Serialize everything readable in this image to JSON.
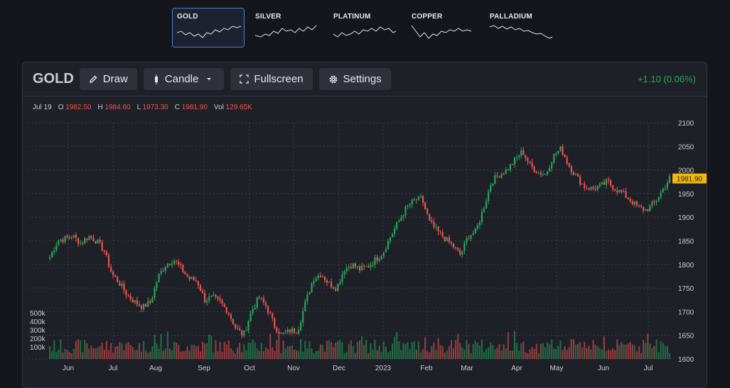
{
  "tabs": [
    {
      "name": "GOLD",
      "active": true
    },
    {
      "name": "SILVER",
      "active": false
    },
    {
      "name": "PLATINUM",
      "active": false
    },
    {
      "name": "COPPER",
      "active": false
    },
    {
      "name": "PALLADIUM",
      "active": false
    }
  ],
  "toolbar": {
    "symbol": "GOLD",
    "draw_label": "Draw",
    "chart_type_label": "Candle",
    "fullscreen_label": "Fullscreen",
    "settings_label": "Settings",
    "change": "+1.10 (0.06%)"
  },
  "legend": {
    "date": "Jul 19",
    "open_label": "O",
    "open": "1982.50",
    "high_label": "H",
    "high": "1984.60",
    "low_label": "L",
    "low": "1973.30",
    "close_label": "C",
    "close": "1981.90",
    "vol_label": "Vol",
    "vol": "129.65K"
  },
  "colors": {
    "up": "#26a65b",
    "down": "#ef5350",
    "last_price": "#f0b90b",
    "accent": "#4a7bd0"
  },
  "chart_data": {
    "type": "candlestick",
    "y_ticks": [
      1600,
      1650,
      1700,
      1750,
      1800,
      1850,
      1900,
      1950,
      2000,
      2050,
      2100
    ],
    "ylim": [
      1600,
      2100
    ],
    "x_ticks": [
      "Jun",
      "Jul",
      "Aug",
      "Sep",
      "Oct",
      "Nov",
      "Dec",
      "2023",
      "Feb",
      "Mar",
      "Apr",
      "May",
      "Jun",
      "Jul"
    ],
    "volume_ticks": [
      "500k",
      "400k",
      "300k",
      "200k",
      "100k"
    ],
    "last_price": "1981.90",
    "grid": true,
    "close_path": [
      [
        "Jun",
        1815
      ],
      [
        "",
        1850
      ],
      [
        "",
        1855
      ],
      [
        "",
        1860
      ],
      [
        "",
        1845
      ],
      [
        "",
        1860
      ],
      [
        "",
        1850
      ],
      [
        "Jul",
        1830
      ],
      [
        "",
        1780
      ],
      [
        "",
        1760
      ],
      [
        "",
        1735
      ],
      [
        "",
        1720
      ],
      [
        "",
        1710
      ],
      [
        "",
        1720
      ],
      [
        "Aug",
        1775
      ],
      [
        "",
        1800
      ],
      [
        "",
        1810
      ],
      [
        "",
        1790
      ],
      [
        "",
        1770
      ],
      [
        "",
        1765
      ],
      [
        "Sep",
        1725
      ],
      [
        "",
        1730
      ],
      [
        "",
        1720
      ],
      [
        "",
        1700
      ],
      [
        "",
        1665
      ],
      [
        "",
        1650
      ],
      [
        "Oct",
        1700
      ],
      [
        "",
        1730
      ],
      [
        "",
        1710
      ],
      [
        "",
        1670
      ],
      [
        "",
        1650
      ],
      [
        "",
        1660
      ],
      [
        "Nov",
        1660
      ],
      [
        "",
        1720
      ],
      [
        "",
        1770
      ],
      [
        "",
        1780
      ],
      [
        "",
        1760
      ],
      [
        "",
        1750
      ],
      [
        "Dec",
        1790
      ],
      [
        "",
        1800
      ],
      [
        "",
        1790
      ],
      [
        "",
        1795
      ],
      [
        "",
        1810
      ],
      [
        "2023",
        1825
      ],
      [
        "",
        1860
      ],
      [
        "",
        1890
      ],
      [
        "",
        1920
      ],
      [
        "",
        1935
      ],
      [
        "Feb",
        1940
      ],
      [
        "",
        1890
      ],
      [
        "",
        1870
      ],
      [
        "",
        1855
      ],
      [
        "",
        1840
      ],
      [
        "Mar",
        1820
      ],
      [
        "",
        1860
      ],
      [
        "",
        1870
      ],
      [
        "",
        1920
      ],
      [
        "",
        1975
      ],
      [
        "",
        1990
      ],
      [
        "Apr",
        2000
      ],
      [
        "",
        2020
      ],
      [
        "",
        2040
      ],
      [
        "",
        2010
      ],
      [
        "",
        1995
      ],
      [
        "",
        1990
      ],
      [
        "May",
        2030
      ],
      [
        "",
        2045
      ],
      [
        "",
        2010
      ],
      [
        "",
        1985
      ],
      [
        "",
        1965
      ],
      [
        "",
        1960
      ],
      [
        "Jun",
        1965
      ],
      [
        "",
        1975
      ],
      [
        "",
        1960
      ],
      [
        "",
        1950
      ],
      [
        "",
        1935
      ],
      [
        "",
        1920
      ],
      [
        "Jul",
        1915
      ],
      [
        "",
        1930
      ],
      [
        "",
        1955
      ],
      [
        "",
        1982
      ]
    ]
  }
}
